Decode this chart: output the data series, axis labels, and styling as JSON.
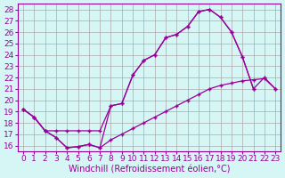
{
  "xlabel": "Windchill (Refroidissement éolien,°C)",
  "bg_color": "#d6f5f5",
  "line_color": "#990099",
  "grid_color": "#aaaaaa",
  "xlim": [
    -0.5,
    23.5
  ],
  "ylim": [
    15.5,
    28.5
  ],
  "yticks": [
    16,
    17,
    18,
    19,
    20,
    21,
    22,
    23,
    24,
    25,
    26,
    27,
    28
  ],
  "xticks": [
    0,
    1,
    2,
    3,
    4,
    5,
    6,
    7,
    8,
    9,
    10,
    11,
    12,
    13,
    14,
    15,
    16,
    17,
    18,
    19,
    20,
    21,
    22,
    23
  ],
  "series1_x": [
    0,
    1,
    2,
    3,
    4,
    5,
    6,
    7,
    8,
    9,
    10,
    11,
    12,
    13,
    14,
    15,
    16,
    17,
    18,
    19,
    20,
    21,
    22,
    23
  ],
  "series1_y": [
    19.2,
    18.5,
    17.3,
    16.7,
    15.8,
    15.9,
    16.1,
    15.8,
    19.5,
    19.7,
    22.2,
    23.5,
    24.0,
    25.5,
    25.8,
    26.5,
    27.8,
    28.0,
    27.3,
    26.0,
    23.8,
    21.0,
    22.0,
    21.0
  ],
  "series2_x": [
    0,
    1,
    2,
    3,
    4,
    5,
    6,
    7,
    8,
    9,
    10,
    11,
    12,
    13,
    14,
    15,
    16,
    17,
    18,
    19,
    20,
    21
  ],
  "series2_y": [
    19.2,
    18.5,
    17.3,
    17.3,
    17.3,
    17.3,
    17.3,
    17.3,
    19.5,
    19.7,
    22.2,
    23.5,
    24.0,
    25.5,
    25.8,
    26.5,
    27.8,
    28.0,
    27.3,
    26.0,
    23.8,
    21.0
  ],
  "series3_x": [
    0,
    1,
    2,
    3,
    4,
    5,
    6,
    7,
    8,
    9,
    10,
    11,
    12,
    13,
    14,
    15,
    16,
    17,
    18,
    19,
    20,
    21,
    22,
    23
  ],
  "series3_y": [
    19.2,
    18.5,
    17.3,
    16.7,
    15.8,
    15.9,
    16.1,
    15.8,
    16.5,
    17.0,
    17.5,
    18.0,
    18.5,
    19.0,
    19.5,
    20.0,
    20.5,
    21.0,
    21.3,
    21.5,
    21.7,
    21.8,
    21.9,
    21.0
  ],
  "fontsize_label": 7,
  "fontsize_tick": 6.5
}
